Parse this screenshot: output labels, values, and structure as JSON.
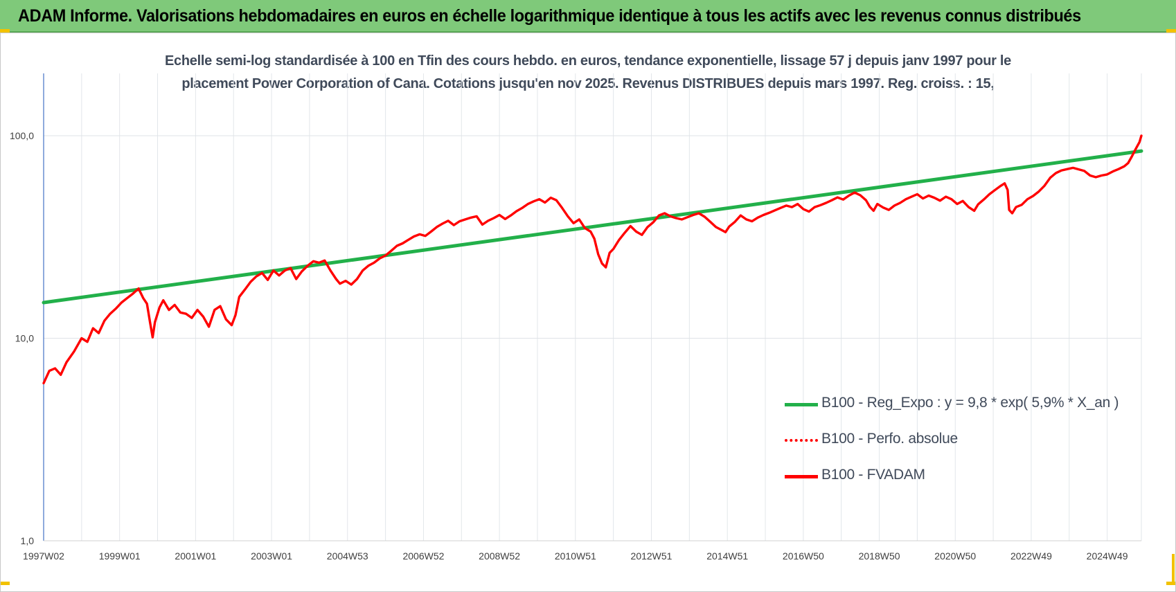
{
  "banner": {
    "title": "ADAM Informe. Valorisations hebdomadaires en euros en échelle logarithmique identique à tous les actifs avec les revenus connus distribués"
  },
  "chart_data": {
    "type": "line",
    "subtitle_line1": "Echelle semi-log standardisée à 100 en Tfin des cours hebdo. en euros, tendance exponentielle, lissage 57 j depuis janv 1997 pour le",
    "subtitle_line2": "placement Power Corporation of Cana. Cotations jusqu'en nov 2025. Revenus DISTRIBUES depuis mars 1997. Reg. croiss. : 15,",
    "y_scale": "log",
    "ylim": [
      1,
      200
    ],
    "y_ticks": [
      1,
      10,
      100
    ],
    "y_tick_labels": [
      "1,0",
      "10,0",
      "100,0"
    ],
    "x_tick_labels": [
      "1997W02",
      "1999W01",
      "2001W01",
      "2003W01",
      "2004W53",
      "2006W52",
      "2008W52",
      "2010W51",
      "2012W51",
      "2014W51",
      "2016W50",
      "2018W50",
      "2020W50",
      "2022W49",
      "2024W49"
    ],
    "x_tick_years": [
      1997.0,
      1999.0,
      2001.0,
      2003.0,
      2005.0,
      2007.0,
      2009.0,
      2011.0,
      2013.0,
      2015.0,
      2017.0,
      2019.0,
      2021.0,
      2023.0,
      2025.0
    ],
    "xlim": [
      1997.0,
      2025.9
    ],
    "grid": true,
    "legend_position": "bottom-right",
    "series": [
      {
        "name": "B100 - Reg_Expo : y = 9,8 * exp( 5,9% *  X_an )",
        "color": "#22b04a",
        "style": "solid",
        "points": [
          [
            1997.0,
            15.0
          ],
          [
            2025.9,
            84.0
          ]
        ]
      },
      {
        "name": "B100 - Perfo. absolue",
        "color": "#ff0000",
        "style": "dotted",
        "points": []
      },
      {
        "name": "B100 - FVADAM",
        "color": "#ff0000",
        "style": "solid",
        "points": [
          [
            1997.0,
            6.0
          ],
          [
            1997.15,
            6.9
          ],
          [
            1997.3,
            7.1
          ],
          [
            1997.45,
            6.6
          ],
          [
            1997.6,
            7.6
          ],
          [
            1997.8,
            8.6
          ],
          [
            1998.0,
            10.0
          ],
          [
            1998.15,
            9.6
          ],
          [
            1998.3,
            11.2
          ],
          [
            1998.45,
            10.6
          ],
          [
            1998.6,
            12.2
          ],
          [
            1998.75,
            13.2
          ],
          [
            1998.9,
            14.0
          ],
          [
            1999.05,
            15.0
          ],
          [
            1999.2,
            15.8
          ],
          [
            1999.35,
            16.6
          ],
          [
            1999.5,
            17.6
          ],
          [
            1999.62,
            15.8
          ],
          [
            1999.72,
            14.8
          ],
          [
            1999.8,
            12.0
          ],
          [
            1999.87,
            10.1
          ],
          [
            1999.93,
            12.0
          ],
          [
            2000.05,
            14.2
          ],
          [
            2000.15,
            15.4
          ],
          [
            2000.3,
            13.8
          ],
          [
            2000.45,
            14.6
          ],
          [
            2000.6,
            13.4
          ],
          [
            2000.75,
            13.2
          ],
          [
            2000.9,
            12.6
          ],
          [
            2001.05,
            13.8
          ],
          [
            2001.2,
            12.8
          ],
          [
            2001.35,
            11.4
          ],
          [
            2001.5,
            13.8
          ],
          [
            2001.65,
            14.4
          ],
          [
            2001.8,
            12.4
          ],
          [
            2001.95,
            11.6
          ],
          [
            2002.05,
            13.0
          ],
          [
            2002.15,
            16.0
          ],
          [
            2002.3,
            17.4
          ],
          [
            2002.45,
            19.0
          ],
          [
            2002.6,
            20.2
          ],
          [
            2002.75,
            21.0
          ],
          [
            2002.9,
            19.4
          ],
          [
            2003.05,
            21.6
          ],
          [
            2003.2,
            20.4
          ],
          [
            2003.35,
            21.6
          ],
          [
            2003.5,
            22.2
          ],
          [
            2003.65,
            19.6
          ],
          [
            2003.8,
            21.4
          ],
          [
            2003.95,
            22.8
          ],
          [
            2004.1,
            24.0
          ],
          [
            2004.25,
            23.6
          ],
          [
            2004.4,
            24.2
          ],
          [
            2004.55,
            21.6
          ],
          [
            2004.7,
            19.6
          ],
          [
            2004.8,
            18.6
          ],
          [
            2004.95,
            19.2
          ],
          [
            2005.1,
            18.4
          ],
          [
            2005.25,
            19.6
          ],
          [
            2005.4,
            21.6
          ],
          [
            2005.55,
            22.8
          ],
          [
            2005.7,
            23.6
          ],
          [
            2005.85,
            24.8
          ],
          [
            2006.0,
            25.6
          ],
          [
            2006.15,
            27.0
          ],
          [
            2006.3,
            28.6
          ],
          [
            2006.45,
            29.4
          ],
          [
            2006.6,
            30.6
          ],
          [
            2006.75,
            31.8
          ],
          [
            2006.9,
            32.6
          ],
          [
            2007.05,
            32.0
          ],
          [
            2007.2,
            33.6
          ],
          [
            2007.35,
            35.4
          ],
          [
            2007.5,
            36.8
          ],
          [
            2007.65,
            38.0
          ],
          [
            2007.8,
            36.2
          ],
          [
            2007.95,
            37.8
          ],
          [
            2008.1,
            38.6
          ],
          [
            2008.25,
            39.4
          ],
          [
            2008.4,
            40.0
          ],
          [
            2008.55,
            36.4
          ],
          [
            2008.7,
            38.0
          ],
          [
            2008.85,
            39.2
          ],
          [
            2009.0,
            40.6
          ],
          [
            2009.15,
            38.8
          ],
          [
            2009.3,
            40.4
          ],
          [
            2009.45,
            42.4
          ],
          [
            2009.6,
            44.0
          ],
          [
            2009.75,
            46.0
          ],
          [
            2009.9,
            47.4
          ],
          [
            2010.05,
            48.6
          ],
          [
            2010.2,
            46.8
          ],
          [
            2010.35,
            49.4
          ],
          [
            2010.5,
            48.0
          ],
          [
            2010.65,
            44.0
          ],
          [
            2010.8,
            40.0
          ],
          [
            2010.95,
            37.0
          ],
          [
            2011.1,
            38.6
          ],
          [
            2011.25,
            35.0
          ],
          [
            2011.4,
            33.6
          ],
          [
            2011.5,
            31.0
          ],
          [
            2011.6,
            26.0
          ],
          [
            2011.7,
            23.4
          ],
          [
            2011.8,
            22.4
          ],
          [
            2011.9,
            26.4
          ],
          [
            2012.0,
            27.6
          ],
          [
            2012.15,
            30.6
          ],
          [
            2012.3,
            33.2
          ],
          [
            2012.45,
            35.8
          ],
          [
            2012.6,
            33.6
          ],
          [
            2012.75,
            32.4
          ],
          [
            2012.9,
            35.4
          ],
          [
            2013.05,
            37.4
          ],
          [
            2013.2,
            40.4
          ],
          [
            2013.35,
            41.4
          ],
          [
            2013.5,
            40.0
          ],
          [
            2013.65,
            39.2
          ],
          [
            2013.8,
            38.6
          ],
          [
            2013.95,
            39.6
          ],
          [
            2014.1,
            40.6
          ],
          [
            2014.25,
            41.4
          ],
          [
            2014.4,
            39.8
          ],
          [
            2014.55,
            37.6
          ],
          [
            2014.7,
            35.4
          ],
          [
            2014.85,
            34.2
          ],
          [
            2014.95,
            33.4
          ],
          [
            2015.05,
            35.6
          ],
          [
            2015.2,
            37.6
          ],
          [
            2015.35,
            40.4
          ],
          [
            2015.5,
            38.6
          ],
          [
            2015.65,
            37.8
          ],
          [
            2015.8,
            39.4
          ],
          [
            2015.95,
            40.6
          ],
          [
            2016.1,
            41.6
          ],
          [
            2016.25,
            42.8
          ],
          [
            2016.4,
            44.0
          ],
          [
            2016.55,
            45.2
          ],
          [
            2016.7,
            44.4
          ],
          [
            2016.85,
            46.0
          ],
          [
            2017.0,
            43.4
          ],
          [
            2017.15,
            42.2
          ],
          [
            2017.3,
            44.4
          ],
          [
            2017.45,
            45.4
          ],
          [
            2017.6,
            46.6
          ],
          [
            2017.75,
            48.0
          ],
          [
            2017.9,
            49.6
          ],
          [
            2018.05,
            48.4
          ],
          [
            2018.2,
            50.6
          ],
          [
            2018.35,
            52.4
          ],
          [
            2018.5,
            50.8
          ],
          [
            2018.65,
            48.0
          ],
          [
            2018.75,
            44.6
          ],
          [
            2018.85,
            42.6
          ],
          [
            2018.95,
            46.0
          ],
          [
            2019.1,
            44.2
          ],
          [
            2019.25,
            43.0
          ],
          [
            2019.4,
            45.2
          ],
          [
            2019.55,
            46.6
          ],
          [
            2019.7,
            48.6
          ],
          [
            2019.85,
            50.0
          ],
          [
            2020.0,
            51.4
          ],
          [
            2020.15,
            49.0
          ],
          [
            2020.3,
            50.6
          ],
          [
            2020.45,
            49.4
          ],
          [
            2020.6,
            47.8
          ],
          [
            2020.75,
            50.0
          ],
          [
            2020.9,
            48.6
          ],
          [
            2021.05,
            46.0
          ],
          [
            2021.2,
            47.6
          ],
          [
            2021.35,
            44.4
          ],
          [
            2021.5,
            42.6
          ],
          [
            2021.6,
            45.8
          ],
          [
            2021.75,
            48.4
          ],
          [
            2021.9,
            51.4
          ],
          [
            2022.05,
            54.0
          ],
          [
            2022.2,
            56.6
          ],
          [
            2022.3,
            58.2
          ],
          [
            2022.38,
            54.0
          ],
          [
            2022.42,
            43.0
          ],
          [
            2022.5,
            41.4
          ],
          [
            2022.6,
            44.4
          ],
          [
            2022.75,
            45.6
          ],
          [
            2022.9,
            48.6
          ],
          [
            2023.05,
            50.4
          ],
          [
            2023.2,
            53.0
          ],
          [
            2023.35,
            56.6
          ],
          [
            2023.5,
            62.0
          ],
          [
            2023.65,
            65.4
          ],
          [
            2023.8,
            67.4
          ],
          [
            2023.95,
            68.4
          ],
          [
            2024.1,
            69.4
          ],
          [
            2024.25,
            68.2
          ],
          [
            2024.4,
            67.0
          ],
          [
            2024.55,
            63.6
          ],
          [
            2024.7,
            62.4
          ],
          [
            2024.85,
            63.6
          ],
          [
            2025.0,
            64.4
          ],
          [
            2025.15,
            66.6
          ],
          [
            2025.3,
            68.4
          ],
          [
            2025.45,
            70.6
          ],
          [
            2025.55,
            73.2
          ],
          [
            2025.65,
            79.0
          ],
          [
            2025.75,
            86.0
          ],
          [
            2025.85,
            93.0
          ],
          [
            2025.9,
            100.0
          ]
        ]
      }
    ]
  }
}
